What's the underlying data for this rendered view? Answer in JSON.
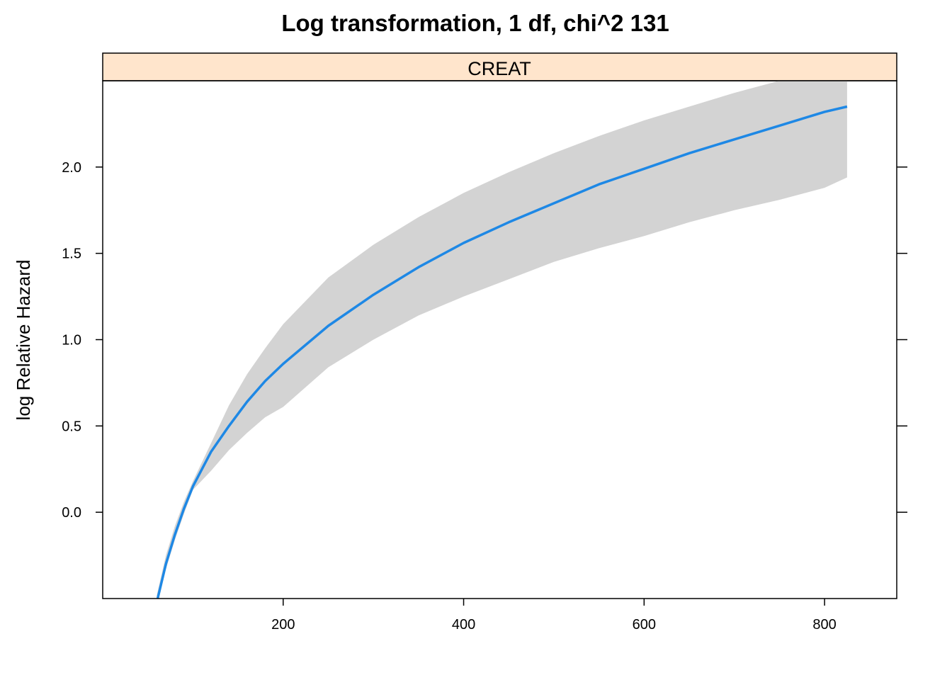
{
  "chart_data": {
    "type": "line",
    "title": "Log transformation, 1 df, chi^2 131",
    "panel_strip": "CREAT",
    "xlabel": "",
    "ylabel": "log Relative Hazard",
    "xlim": [
      0,
      880
    ],
    "ylim": [
      -0.5,
      2.5
    ],
    "x_ticks": [
      200,
      400,
      600,
      800
    ],
    "y_ticks": [
      0.0,
      0.5,
      1.0,
      1.5,
      2.0
    ],
    "x_tick_labels": [
      "200",
      "400",
      "600",
      "800"
    ],
    "y_tick_labels": [
      "0.0",
      "0.5",
      "1.0",
      "1.5",
      "2.0"
    ],
    "grid": false,
    "colors": {
      "line": "#1e88e5",
      "band": "#d3d3d3",
      "strip": "#ffe5cc"
    },
    "series": [
      {
        "x": [
          60,
          70,
          80,
          90,
          100,
          120,
          140,
          160,
          180,
          200,
          250,
          300,
          350,
          400,
          450,
          500,
          550,
          600,
          650,
          700,
          750,
          800,
          825
        ],
        "y": [
          -0.52,
          -0.3,
          -0.13,
          0.02,
          0.15,
          0.35,
          0.5,
          0.64,
          0.76,
          0.86,
          1.08,
          1.26,
          1.42,
          1.56,
          1.68,
          1.79,
          1.9,
          1.99,
          2.08,
          2.16,
          2.24,
          2.32,
          2.35
        ],
        "lower": [
          -0.54,
          -0.33,
          -0.16,
          -0.01,
          0.13,
          0.24,
          0.36,
          0.46,
          0.55,
          0.61,
          0.84,
          1.0,
          1.14,
          1.25,
          1.35,
          1.45,
          1.53,
          1.6,
          1.68,
          1.75,
          1.81,
          1.88,
          1.94
        ],
        "upper": [
          -0.48,
          -0.25,
          -0.08,
          0.06,
          0.18,
          0.4,
          0.62,
          0.8,
          0.95,
          1.09,
          1.36,
          1.55,
          1.71,
          1.85,
          1.97,
          2.08,
          2.18,
          2.27,
          2.35,
          2.43,
          2.5,
          2.56,
          2.59
        ]
      }
    ]
  }
}
